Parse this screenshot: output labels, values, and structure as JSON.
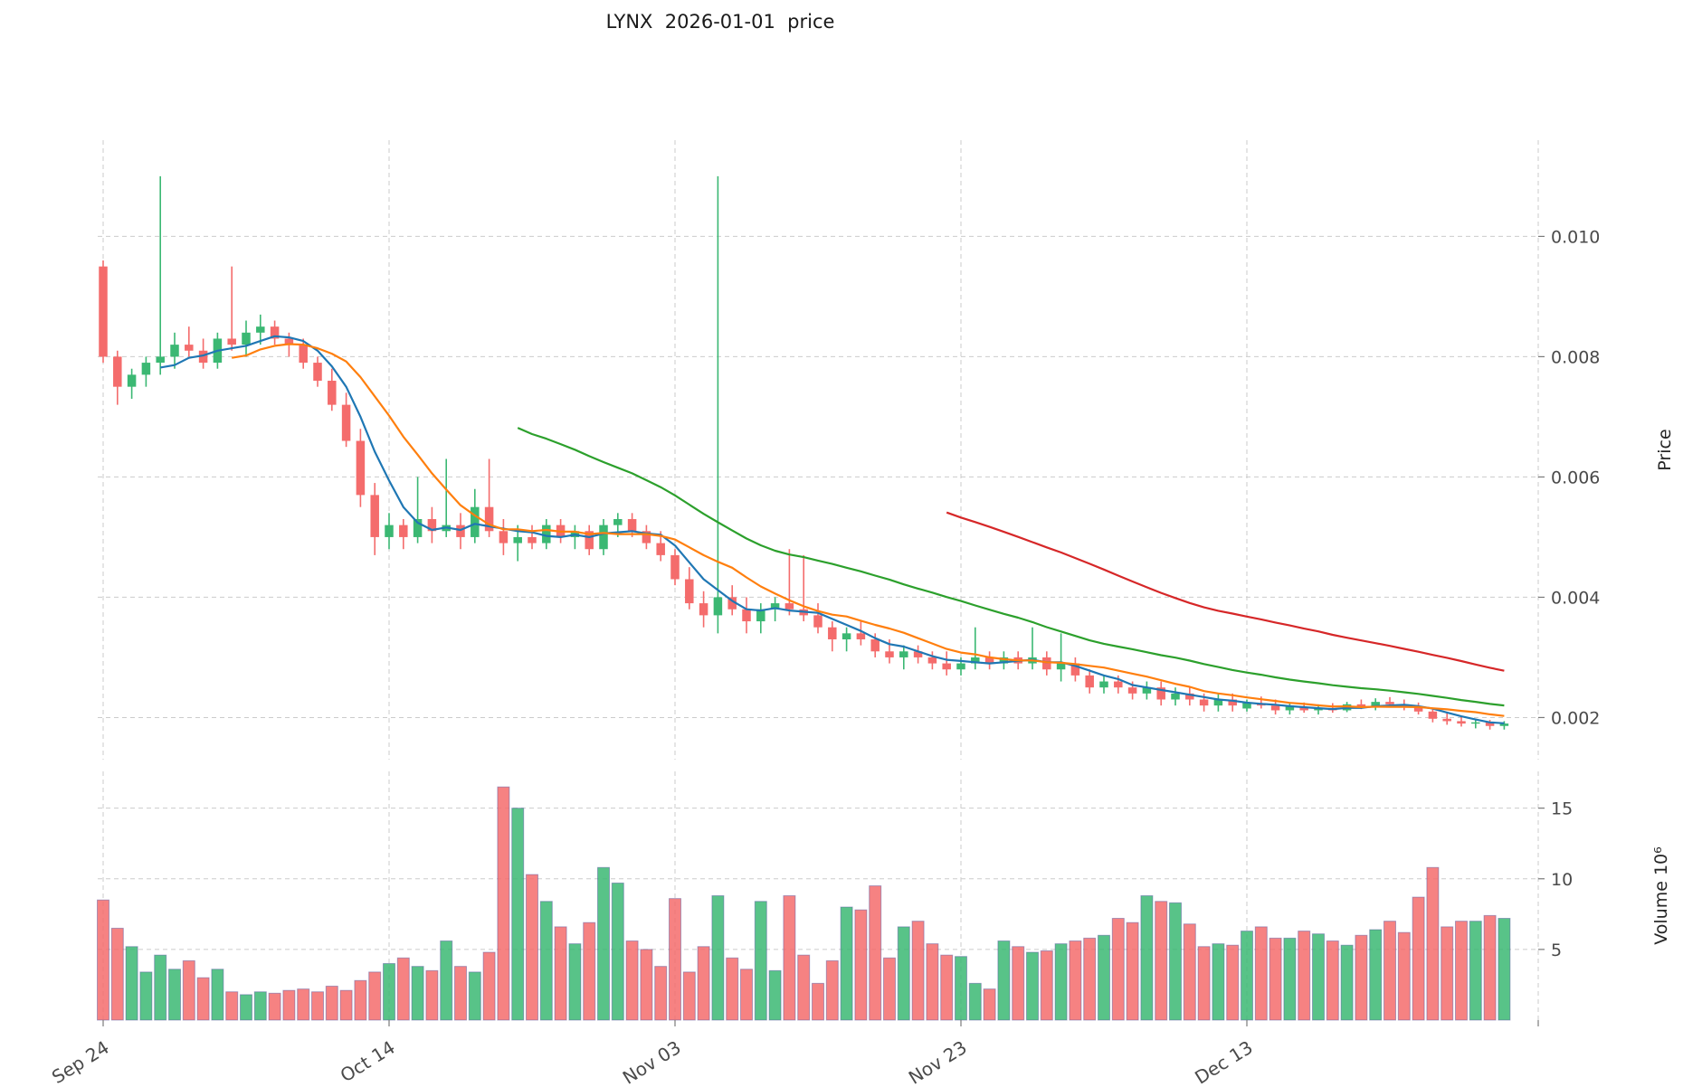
{
  "title": "LYNX  2026-01-01  price",
  "axes": {
    "price_label": "Price",
    "volume_label": "Volume  10⁶",
    "price_tick_values": [
      0.002,
      0.004,
      0.006,
      0.008,
      0.01
    ],
    "price_tick_labels": [
      "0.002",
      "0.004",
      "0.006",
      "0.008",
      "0.010"
    ],
    "volume_tick_values": [
      5,
      10,
      15
    ],
    "volume_tick_labels": [
      "5",
      "10",
      "15"
    ]
  },
  "chart_data": {
    "type": "candlestick",
    "title": "LYNX  2026-01-01  price",
    "x_tick_indices": [
      0,
      20,
      40,
      60,
      80
    ],
    "x_tick_labels": [
      "Sep 24",
      "Oct 14",
      "Nov 03",
      "Nov 23",
      "Dec 13"
    ],
    "price_ylim": [
      0.0013,
      0.0116
    ],
    "volume_ylim": [
      0,
      17.6
    ],
    "volume_unit": "millions",
    "grid": true,
    "legend": "none",
    "moving_average_windows": [
      5,
      10,
      30,
      60
    ],
    "colors": {
      "up": "#3bb873",
      "down": "#f46c6c",
      "ma": [
        "#1f77b4",
        "#ff7f0e",
        "#2ca02c",
        "#d62728"
      ],
      "grid": "#cbcbcb",
      "text": "#4a4a4a",
      "volume_edge": "#4f4f9d"
    },
    "ohlcv_columns": [
      "open",
      "high",
      "low",
      "close",
      "volume_millions"
    ],
    "ohlcv": [
      [
        0.0095,
        0.0096,
        0.0079,
        0.008,
        8.5
      ],
      [
        0.008,
        0.0081,
        0.0072,
        0.0075,
        6.5
      ],
      [
        0.0075,
        0.0078,
        0.0073,
        0.0077,
        5.2
      ],
      [
        0.0077,
        0.008,
        0.0075,
        0.0079,
        3.4
      ],
      [
        0.0079,
        0.011,
        0.0077,
        0.008,
        4.6
      ],
      [
        0.008,
        0.0084,
        0.0078,
        0.0082,
        3.6
      ],
      [
        0.0082,
        0.0085,
        0.008,
        0.0081,
        4.2
      ],
      [
        0.0081,
        0.0083,
        0.0078,
        0.0079,
        3.0
      ],
      [
        0.0079,
        0.0084,
        0.0078,
        0.0083,
        3.6
      ],
      [
        0.0083,
        0.0095,
        0.0081,
        0.0082,
        2.0
      ],
      [
        0.0082,
        0.0086,
        0.008,
        0.0084,
        1.8
      ],
      [
        0.0084,
        0.0087,
        0.0082,
        0.0085,
        2.0
      ],
      [
        0.0085,
        0.0086,
        0.0082,
        0.0083,
        1.9
      ],
      [
        0.0083,
        0.0084,
        0.008,
        0.0082,
        2.1
      ],
      [
        0.0082,
        0.0083,
        0.0078,
        0.0079,
        2.2
      ],
      [
        0.0079,
        0.008,
        0.0075,
        0.0076,
        2.0
      ],
      [
        0.0076,
        0.0078,
        0.0071,
        0.0072,
        2.4
      ],
      [
        0.0072,
        0.0074,
        0.0065,
        0.0066,
        2.1
      ],
      [
        0.0066,
        0.0068,
        0.0055,
        0.0057,
        2.8
      ],
      [
        0.0057,
        0.0059,
        0.0047,
        0.005,
        3.4
      ],
      [
        0.005,
        0.0054,
        0.0048,
        0.0052,
        4.0
      ],
      [
        0.0052,
        0.0053,
        0.0048,
        0.005,
        4.4
      ],
      [
        0.005,
        0.006,
        0.0049,
        0.0053,
        3.8
      ],
      [
        0.0053,
        0.0055,
        0.0049,
        0.0051,
        3.5
      ],
      [
        0.0051,
        0.0063,
        0.005,
        0.0052,
        5.6
      ],
      [
        0.0052,
        0.0054,
        0.0048,
        0.005,
        3.8
      ],
      [
        0.005,
        0.0058,
        0.0049,
        0.0055,
        3.4
      ],
      [
        0.0055,
        0.0063,
        0.005,
        0.0051,
        4.8
      ],
      [
        0.0051,
        0.0053,
        0.0047,
        0.0049,
        16.5
      ],
      [
        0.0049,
        0.0052,
        0.0046,
        0.005,
        15.0
      ],
      [
        0.005,
        0.0052,
        0.0048,
        0.0049,
        10.3
      ],
      [
        0.0049,
        0.0053,
        0.0048,
        0.0052,
        8.4
      ],
      [
        0.0052,
        0.0053,
        0.0049,
        0.005,
        6.6
      ],
      [
        0.005,
        0.0052,
        0.0048,
        0.0051,
        5.4
      ],
      [
        0.0051,
        0.0052,
        0.0047,
        0.0048,
        6.9
      ],
      [
        0.0048,
        0.0053,
        0.0047,
        0.0052,
        10.8
      ],
      [
        0.0052,
        0.0054,
        0.005,
        0.0053,
        9.7
      ],
      [
        0.0053,
        0.0054,
        0.005,
        0.0051,
        5.6
      ],
      [
        0.0051,
        0.0052,
        0.0048,
        0.0049,
        5.0
      ],
      [
        0.0049,
        0.0051,
        0.0046,
        0.0047,
        3.8
      ],
      [
        0.0047,
        0.0048,
        0.0042,
        0.0043,
        8.6
      ],
      [
        0.0043,
        0.0045,
        0.0038,
        0.0039,
        3.4
      ],
      [
        0.0039,
        0.0041,
        0.0035,
        0.0037,
        5.2
      ],
      [
        0.0037,
        0.011,
        0.0034,
        0.004,
        8.8
      ],
      [
        0.004,
        0.0042,
        0.0037,
        0.0038,
        4.4
      ],
      [
        0.0038,
        0.004,
        0.0034,
        0.0036,
        3.6
      ],
      [
        0.0036,
        0.0039,
        0.0034,
        0.0038,
        8.4
      ],
      [
        0.0038,
        0.004,
        0.0036,
        0.0039,
        3.5
      ],
      [
        0.0039,
        0.0048,
        0.0037,
        0.0038,
        8.8
      ],
      [
        0.0038,
        0.0047,
        0.0036,
        0.0037,
        4.6
      ],
      [
        0.0037,
        0.0039,
        0.0034,
        0.0035,
        2.6
      ],
      [
        0.0035,
        0.0036,
        0.0031,
        0.0033,
        4.2
      ],
      [
        0.0033,
        0.0035,
        0.0031,
        0.0034,
        8.0
      ],
      [
        0.0034,
        0.0036,
        0.0032,
        0.0033,
        7.8
      ],
      [
        0.0033,
        0.0034,
        0.003,
        0.0031,
        9.5
      ],
      [
        0.0031,
        0.0033,
        0.0029,
        0.003,
        4.4
      ],
      [
        0.003,
        0.0032,
        0.0028,
        0.0031,
        6.6
      ],
      [
        0.0031,
        0.0032,
        0.0029,
        0.003,
        7.0
      ],
      [
        0.003,
        0.0031,
        0.0028,
        0.0029,
        5.4
      ],
      [
        0.0029,
        0.0031,
        0.0027,
        0.0028,
        4.6
      ],
      [
        0.0028,
        0.003,
        0.0027,
        0.0029,
        4.5
      ],
      [
        0.0029,
        0.0035,
        0.0028,
        0.003,
        2.6
      ],
      [
        0.003,
        0.0031,
        0.0028,
        0.0029,
        2.2
      ],
      [
        0.0029,
        0.0031,
        0.0028,
        0.003,
        5.6
      ],
      [
        0.003,
        0.0031,
        0.0028,
        0.0029,
        5.2
      ],
      [
        0.0029,
        0.0035,
        0.0028,
        0.003,
        4.8
      ],
      [
        0.003,
        0.0031,
        0.0027,
        0.0028,
        4.9
      ],
      [
        0.0028,
        0.0034,
        0.0026,
        0.0029,
        5.4
      ],
      [
        0.0029,
        0.003,
        0.0026,
        0.0027,
        5.6
      ],
      [
        0.0027,
        0.0028,
        0.0024,
        0.0025,
        5.8
      ],
      [
        0.0025,
        0.0027,
        0.0024,
        0.0026,
        6.0
      ],
      [
        0.0026,
        0.0027,
        0.0024,
        0.0025,
        7.2
      ],
      [
        0.0025,
        0.0026,
        0.0023,
        0.0024,
        6.9
      ],
      [
        0.0024,
        0.0026,
        0.0023,
        0.0025,
        8.8
      ],
      [
        0.0025,
        0.0026,
        0.0022,
        0.0023,
        8.4
      ],
      [
        0.0023,
        0.0025,
        0.0022,
        0.0024,
        8.3
      ],
      [
        0.0024,
        0.0025,
        0.0022,
        0.0023,
        6.8
      ],
      [
        0.0023,
        0.0024,
        0.0021,
        0.0022,
        5.2
      ],
      [
        0.0022,
        0.0024,
        0.0021,
        0.0023,
        5.4
      ],
      [
        0.0023,
        0.0024,
        0.0021,
        0.0022,
        5.3
      ],
      [
        0.00215,
        0.0023,
        0.0021,
        0.00224,
        6.3
      ],
      [
        0.00224,
        0.00235,
        0.00215,
        0.0022,
        6.6
      ],
      [
        0.0022,
        0.0023,
        0.00205,
        0.00212,
        5.8
      ],
      [
        0.00212,
        0.00225,
        0.00205,
        0.00218,
        5.8
      ],
      [
        0.00218,
        0.00225,
        0.00208,
        0.00212,
        6.3
      ],
      [
        0.00212,
        0.00222,
        0.00205,
        0.00216,
        6.1
      ],
      [
        0.00216,
        0.00224,
        0.00208,
        0.00212,
        5.6
      ],
      [
        0.00212,
        0.00226,
        0.00209,
        0.00222,
        5.3
      ],
      [
        0.00222,
        0.0023,
        0.00214,
        0.00218,
        6.0
      ],
      [
        0.00218,
        0.00232,
        0.00212,
        0.00226,
        6.4
      ],
      [
        0.00226,
        0.00234,
        0.00218,
        0.00222,
        7.0
      ],
      [
        0.00222,
        0.0023,
        0.00212,
        0.00218,
        6.2
      ],
      [
        0.00218,
        0.00225,
        0.00205,
        0.0021,
        8.7
      ],
      [
        0.0021,
        0.00215,
        0.00192,
        0.00198,
        10.8
      ],
      [
        0.00198,
        0.00208,
        0.00188,
        0.00194,
        6.6
      ],
      [
        0.00194,
        0.00202,
        0.00185,
        0.0019,
        7.0
      ],
      [
        0.0019,
        0.00198,
        0.00182,
        0.00192,
        7.0
      ],
      [
        0.00192,
        0.00196,
        0.0018,
        0.00186,
        7.4
      ],
      [
        0.00186,
        0.00194,
        0.0018,
        0.0019,
        7.2
      ]
    ]
  }
}
